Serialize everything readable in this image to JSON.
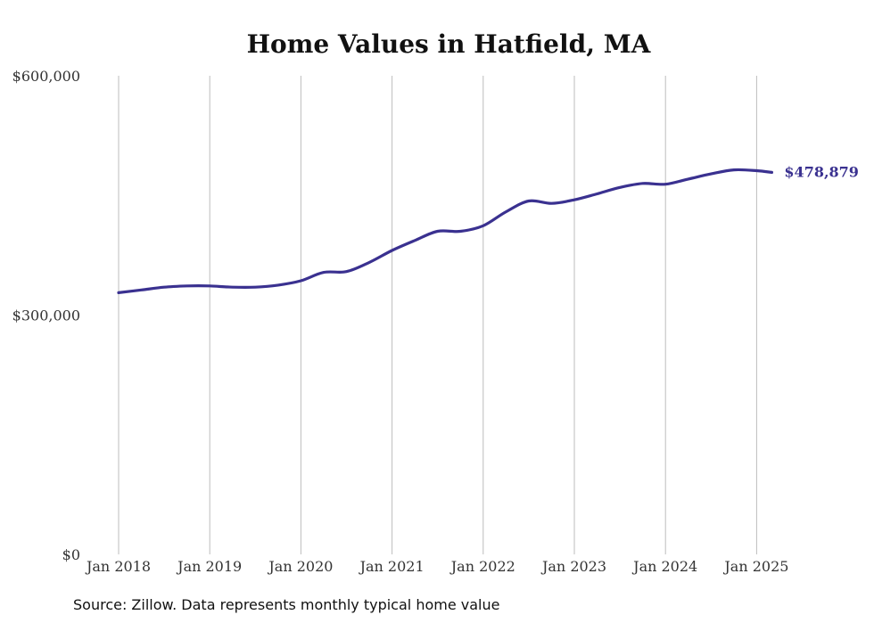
{
  "chart_data": {
    "type": "line",
    "title": "Home Values in Hatfield, MA",
    "xlabel": "",
    "ylabel": "",
    "ylim": [
      0,
      600000
    ],
    "y_ticks": [
      "$0",
      "$300,000",
      "$600,000"
    ],
    "y_tick_values": [
      0,
      300000,
      600000
    ],
    "x_ticks": [
      "Jan 2018",
      "Jan 2019",
      "Jan 2020",
      "Jan 2021",
      "Jan 2022",
      "Jan 2023",
      "Jan 2024",
      "Jan 2025"
    ],
    "x_tick_dates": [
      "2018-01",
      "2019-01",
      "2020-01",
      "2021-01",
      "2022-01",
      "2023-01",
      "2024-01",
      "2025-01"
    ],
    "grid": "vertical",
    "line_color": "#3a3190",
    "end_label": "$478,879",
    "series": [
      {
        "x": [
          "2018-01",
          "2018-04",
          "2018-07",
          "2018-10",
          "2019-01",
          "2019-04",
          "2019-07",
          "2019-10",
          "2020-01",
          "2020-04",
          "2020-07",
          "2020-10",
          "2021-01",
          "2021-04",
          "2021-07",
          "2021-10",
          "2022-01",
          "2022-04",
          "2022-07",
          "2022-10",
          "2023-01",
          "2023-04",
          "2023-07",
          "2023-10",
          "2024-01",
          "2024-04",
          "2024-07",
          "2024-10",
          "2025-01",
          "2025-03"
        ],
        "y": [
          328000,
          331500,
          335000,
          336500,
          336500,
          335000,
          335000,
          337500,
          343000,
          353500,
          354500,
          366000,
          381000,
          393500,
          405000,
          405000,
          412000,
          429500,
          443000,
          440000,
          444500,
          452000,
          460000,
          465000,
          464000,
          470500,
          477000,
          482000,
          481000,
          478879
        ]
      }
    ]
  },
  "source": "Source: Zillow. Data represents monthly typical home value"
}
